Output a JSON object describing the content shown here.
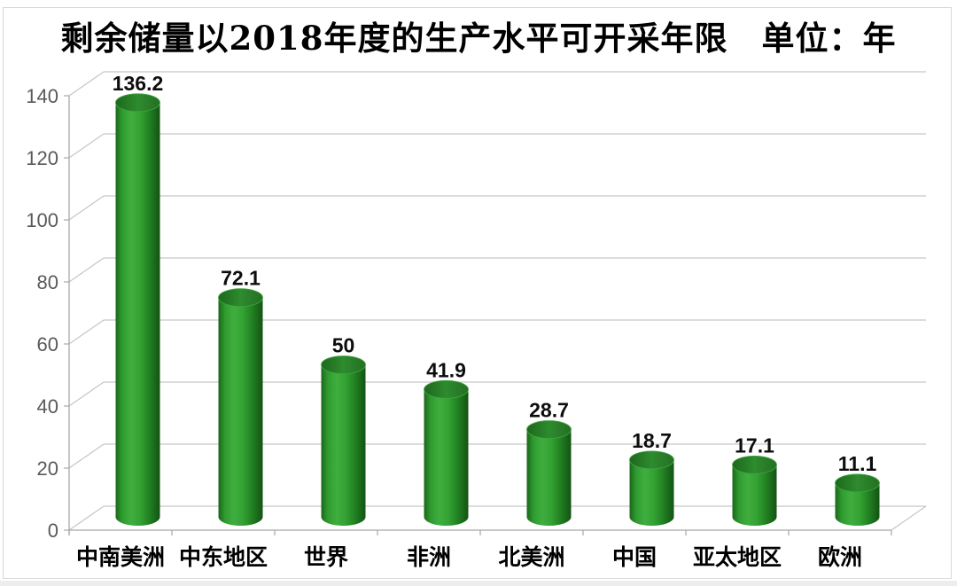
{
  "page": {
    "background": "#ffffff",
    "frame_border_color": "#d9d9d9"
  },
  "chart_data": {
    "type": "bar",
    "style": "3d-cylinder",
    "title": "剩余储量以2018年度的生产水平可开采年限",
    "unit_label": "单位：年",
    "categories": [
      "中南美洲",
      "中东地区",
      "世界",
      "非洲",
      "北美洲",
      "中国",
      "亚太地区",
      "欧洲"
    ],
    "values": [
      136.2,
      72.1,
      50,
      41.9,
      28.7,
      18.7,
      17.1,
      11.1
    ],
    "yticks": [
      0,
      20,
      40,
      60,
      80,
      100,
      120,
      140
    ],
    "ylim": [
      0,
      140
    ],
    "grid": true,
    "legend_position": "none",
    "data_labels": true,
    "colors": {
      "bar_light": "#3fae3f",
      "bar_mid": "#2f9b2f",
      "bar_dark": "#145214",
      "bar_top_mid": "#2e8b2e",
      "bar_top_dark": "#1d681d",
      "gridline": "#c6c6c6",
      "axis_line": "#a8a8a8",
      "tick_label": "#595959",
      "category_label": "#000000",
      "value_label": "#0d0d0d",
      "title_color": "#000000"
    }
  }
}
